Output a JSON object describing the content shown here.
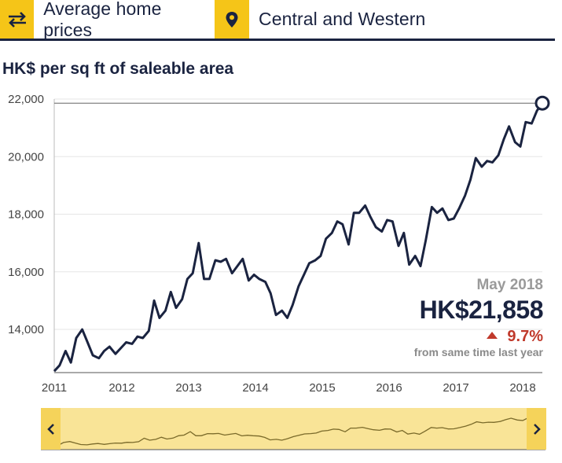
{
  "header": {
    "metric_label": "Average home prices",
    "district_label": "Central and Western",
    "swap_icon": "swap-arrows-icon",
    "location_icon": "map-pin-icon"
  },
  "colors": {
    "accent": "#f5c518",
    "line": "#1a2340",
    "up": "#c0392b",
    "muted": "#9a9a9a"
  },
  "summary": {
    "date": "May 2018",
    "price": "HK$21,858",
    "change": "9.7%",
    "change_note": "from same time last year"
  },
  "chart_data": {
    "type": "line",
    "title": "HK$ per sq ft of saleable area",
    "ylim": [
      12500,
      22000
    ],
    "yticks": [
      14000,
      16000,
      18000,
      20000,
      22000
    ],
    "ytick_labels": [
      "14,000",
      "16,000",
      "18,000",
      "20,000",
      "22,000"
    ],
    "xlim": [
      2011,
      2018.35
    ],
    "xticks": [
      2011,
      2012,
      2013,
      2014,
      2015,
      2016,
      2017,
      2018
    ],
    "xtick_labels": [
      "2011",
      "2012",
      "2013",
      "2014",
      "2015",
      "2016",
      "2017",
      "2018"
    ],
    "grid": true,
    "series": [
      {
        "x": [
          2011.0,
          2011.08,
          2011.17,
          2011.25,
          2011.33,
          2011.42,
          2011.5,
          2011.58,
          2011.67,
          2011.75,
          2011.83,
          2011.92,
          2012.0,
          2012.08,
          2012.17,
          2012.25,
          2012.33,
          2012.42,
          2012.5,
          2012.58,
          2012.67,
          2012.75,
          2012.83,
          2012.92,
          2013.0,
          2013.08,
          2013.17,
          2013.25,
          2013.33,
          2013.42,
          2013.5,
          2013.58,
          2013.67,
          2013.75,
          2013.83,
          2013.92,
          2014.0,
          2014.08,
          2014.17,
          2014.25,
          2014.33,
          2014.42,
          2014.5,
          2014.58,
          2014.67,
          2014.75,
          2014.83,
          2014.92,
          2015.0,
          2015.08,
          2015.17,
          2015.25,
          2015.33,
          2015.42,
          2015.5,
          2015.58,
          2015.67,
          2015.75,
          2015.83,
          2015.92,
          2016.0,
          2016.08,
          2016.17,
          2016.25,
          2016.33,
          2016.42,
          2016.5,
          2016.58,
          2016.67,
          2016.75,
          2016.83,
          2016.92,
          2017.0,
          2017.08,
          2017.17,
          2017.25,
          2017.33,
          2017.42,
          2017.5,
          2017.58,
          2017.67,
          2017.75,
          2017.83,
          2017.92,
          2018.0,
          2018.08,
          2018.17,
          2018.25,
          2018.33
        ],
        "values": [
          12550,
          12750,
          13250,
          12850,
          13700,
          14000,
          13550,
          13100,
          13000,
          13250,
          13400,
          13150,
          13350,
          13550,
          13500,
          13750,
          13700,
          13950,
          15000,
          14400,
          14650,
          15300,
          14750,
          15050,
          15750,
          15950,
          17000,
          15750,
          15750,
          16400,
          16350,
          16450,
          15950,
          16200,
          16450,
          15700,
          15900,
          15750,
          15650,
          15250,
          14500,
          14650,
          14400,
          14850,
          15500,
          15900,
          16300,
          16400,
          16550,
          17150,
          17350,
          17750,
          17650,
          16950,
          18050,
          18050,
          18300,
          17900,
          17550,
          17400,
          17800,
          17750,
          16900,
          17350,
          16250,
          16550,
          16200,
          17100,
          18250,
          18050,
          18200,
          17800,
          17850,
          18200,
          18650,
          19200,
          19950,
          19650,
          19850,
          19800,
          20050,
          20600,
          21050,
          20500,
          20350,
          21200,
          21150,
          21600,
          21858
        ]
      }
    ],
    "highlight": {
      "x": 2018.33,
      "value": 21858
    }
  }
}
